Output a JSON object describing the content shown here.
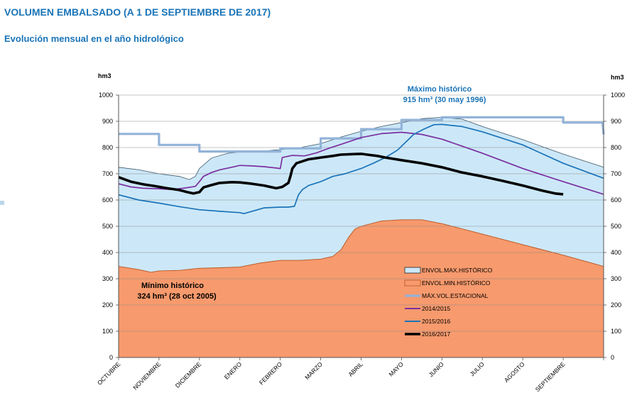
{
  "header": {
    "title": "VOLUMEN EMBALSADO (A 1 DE SEPTIEMBRE DE 2017)",
    "subtitle": "Evolución mensual en el año hidrológico"
  },
  "colors": {
    "env_max": "#cce8f8",
    "env_min": "#f79a6d",
    "max_estacional": "#93b3d8",
    "s2014": "#7b2fa0",
    "s2015": "#1b73b8",
    "s2016": "#000000",
    "annotation_blue": "#1a74b8"
  },
  "chart_data": {
    "type": "area",
    "ylabel_left": "hm3",
    "ylabel_right": "hm3",
    "ylim": [
      0,
      1000
    ],
    "yticks": [
      0,
      100,
      200,
      300,
      400,
      500,
      600,
      700,
      800,
      900,
      1000
    ],
    "xlim": [
      0,
      12
    ],
    "months": [
      "OCTUBRE",
      "NOVIEMBRE",
      "DICIEMBRE",
      "ENERO",
      "FEBRERO",
      "MARZO",
      "ABRIL",
      "MAYO",
      "JUNIO",
      "JULIO",
      "AGOSTO",
      "SEPTIEMBRE"
    ],
    "grid": "horizontal",
    "legend_position": "bottom-right",
    "annotations": {
      "max_title": "Máximo histórico",
      "max_value": "915 hm³ (30 may 1996)",
      "min_title": "Mínimo histórico",
      "min_value": "324 hm³ (28 oct 2005)"
    },
    "series": [
      {
        "key": "env_max",
        "name": "ENVOL.MAX.HISTÓRICO",
        "kind": "area",
        "x": [
          0,
          0.5,
          1,
          1.5,
          1.75,
          1.9,
          2.0,
          2.3,
          2.7,
          3.0,
          3.5,
          4.0,
          4.5,
          5.0,
          5.5,
          6.0,
          6.5,
          7.0,
          7.5,
          8.0,
          8.5,
          9.0,
          10.0,
          11.0,
          12.0
        ],
        "y": [
          725,
          715,
          700,
          690,
          678,
          690,
          720,
          760,
          778,
          783,
          786,
          792,
          800,
          815,
          840,
          862,
          880,
          895,
          910,
          915,
          908,
          880,
          830,
          775,
          725
        ]
      },
      {
        "key": "env_min",
        "name": "ENVOL.MIN.HISTÓRICO",
        "kind": "area",
        "x": [
          0,
          0.5,
          0.8,
          1.0,
          1.5,
          2.0,
          2.5,
          3.0,
          3.5,
          4.0,
          4.5,
          5.0,
          5.3,
          5.5,
          5.7,
          5.85,
          6.0,
          6.5,
          7.0,
          7.5,
          8.0,
          9.0,
          10.0,
          11.0,
          12.0
        ],
        "y": [
          347,
          335,
          325,
          330,
          332,
          340,
          342,
          345,
          360,
          370,
          370,
          375,
          385,
          410,
          460,
          490,
          500,
          520,
          525,
          525,
          510,
          470,
          430,
          390,
          347
        ]
      },
      {
        "key": "max_estacional",
        "name": "MÁX.VOL.ESTACIONAL",
        "kind": "step",
        "x": [
          0,
          1.0,
          1.0,
          2.0,
          2.0,
          4.0,
          4.0,
          5.0,
          5.0,
          6.0,
          6.0,
          7.0,
          7.0,
          8.0,
          8.0,
          11.0,
          11.0,
          11.97,
          12.0
        ],
        "y": [
          852,
          852,
          810,
          810,
          785,
          785,
          797,
          797,
          835,
          835,
          870,
          870,
          905,
          905,
          915,
          915,
          895,
          895,
          850
        ]
      },
      {
        "key": "s2014",
        "name": "2014/2015",
        "kind": "line",
        "x": [
          0,
          0.3,
          0.6,
          1.0,
          1.3,
          1.6,
          1.9,
          2.0,
          2.1,
          2.3,
          2.5,
          2.8,
          3.0,
          3.3,
          3.6,
          3.9,
          4.0,
          4.05,
          4.3,
          4.6,
          4.9,
          5.2,
          5.5,
          6.0,
          6.5,
          7.0,
          7.5,
          8.0,
          8.5,
          9.0,
          10.0,
          11.0,
          12.0
        ],
        "y": [
          662,
          650,
          645,
          643,
          640,
          645,
          652,
          670,
          690,
          705,
          715,
          725,
          732,
          730,
          727,
          722,
          720,
          762,
          770,
          768,
          780,
          797,
          812,
          838,
          853,
          858,
          850,
          832,
          805,
          778,
          720,
          670,
          622
        ]
      },
      {
        "key": "s2015",
        "name": "2015/2016",
        "kind": "line",
        "x": [
          0,
          0.5,
          1.0,
          1.5,
          2.0,
          2.5,
          3.0,
          3.1,
          3.3,
          3.6,
          4.0,
          4.2,
          4.35,
          4.45,
          4.55,
          4.7,
          5.0,
          5.3,
          5.6,
          6.0,
          6.3,
          6.6,
          6.9,
          7.1,
          7.3,
          7.55,
          7.8,
          8.0,
          8.5,
          9.0,
          10.0,
          11.0,
          12.0
        ],
        "y": [
          620,
          600,
          588,
          575,
          563,
          557,
          552,
          548,
          557,
          570,
          573,
          573,
          576,
          620,
          640,
          655,
          670,
          690,
          700,
          720,
          740,
          762,
          790,
          820,
          850,
          870,
          887,
          888,
          880,
          860,
          810,
          740,
          683
        ]
      },
      {
        "key": "s2016",
        "name": "2016/2017",
        "kind": "line",
        "x": [
          0,
          0.3,
          0.6,
          0.9,
          1.2,
          1.5,
          1.7,
          1.85,
          2.0,
          2.1,
          2.3,
          2.5,
          2.8,
          3.0,
          3.3,
          3.6,
          3.9,
          4.05,
          4.2,
          4.25,
          4.3,
          4.4,
          4.7,
          5.0,
          5.3,
          5.5,
          5.8,
          6.0,
          6.2,
          6.4,
          6.6,
          7.0,
          7.5,
          8.0,
          8.5,
          9.0,
          9.5,
          10.0,
          10.5,
          10.8,
          11.0
        ],
        "y": [
          687,
          670,
          660,
          653,
          645,
          638,
          630,
          625,
          630,
          648,
          657,
          665,
          668,
          667,
          662,
          655,
          645,
          650,
          665,
          690,
          720,
          740,
          755,
          762,
          768,
          773,
          775,
          776,
          772,
          768,
          762,
          752,
          740,
          725,
          705,
          690,
          673,
          655,
          635,
          625,
          622
        ]
      }
    ]
  }
}
